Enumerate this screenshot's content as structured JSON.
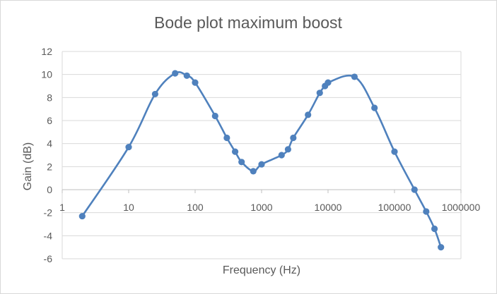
{
  "chart_data": {
    "type": "scatter",
    "title": "Bode plot maximum boost",
    "xlabel": "Frequency (Hz)",
    "ylabel": "Gain (dB)",
    "xscale": "log",
    "xlim": [
      1,
      1000000
    ],
    "ylim": [
      -6,
      12
    ],
    "xticks": [
      "1",
      "10",
      "100",
      "1000",
      "10000",
      "100000",
      "1000000"
    ],
    "yticks": [
      "-6",
      "-4",
      "-2",
      "0",
      "2",
      "4",
      "6",
      "8",
      "10",
      "12"
    ],
    "grid": "horizontal",
    "legend": "none",
    "line": "smoothed",
    "color": "#4f81bd",
    "series": [
      {
        "x": [
          2,
          10,
          25,
          50,
          75,
          100,
          200,
          300,
          400,
          500,
          750,
          1000,
          2000,
          2500,
          3000,
          5000,
          7500,
          9000,
          10000,
          25000,
          50000,
          100000,
          200000,
          300000,
          400000,
          500000
        ],
        "y": [
          -2.3,
          3.7,
          8.3,
          10.1,
          9.9,
          9.3,
          6.4,
          4.5,
          3.3,
          2.4,
          1.6,
          2.2,
          3.0,
          3.5,
          4.5,
          6.5,
          8.4,
          9.0,
          9.3,
          9.8,
          7.1,
          3.3,
          0.0,
          -1.9,
          -3.4,
          -5.0
        ]
      }
    ]
  }
}
